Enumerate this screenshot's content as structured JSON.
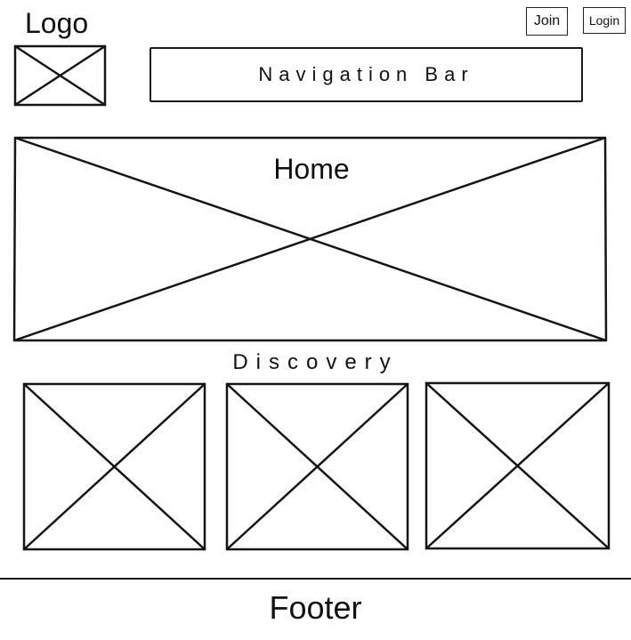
{
  "header": {
    "logo_label": "Logo",
    "join_label": "Join",
    "login_label": "Login"
  },
  "nav": {
    "label": "Navigation Bar"
  },
  "hero": {
    "label": "Home"
  },
  "discovery": {
    "label": "Discovery"
  },
  "footer": {
    "label": "Footer"
  },
  "colors": {
    "stroke": "#151515",
    "background": "#ffffff"
  }
}
